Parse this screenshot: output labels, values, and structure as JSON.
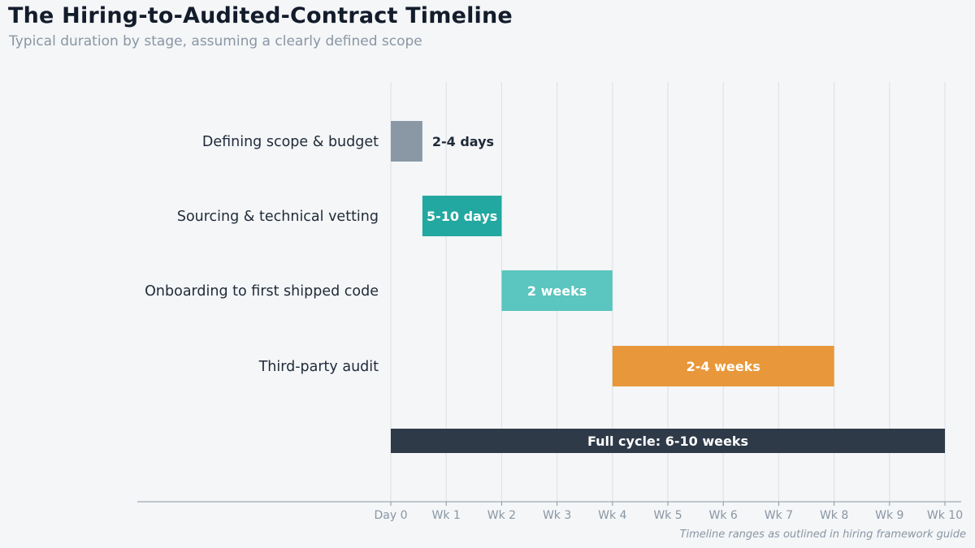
{
  "title": "The Hiring-to-Audited-Contract Timeline",
  "subtitle": "Typical duration by stage, assuming a clearly defined scope",
  "footnote": "Timeline ranges as outlined in hiring framework guide",
  "colors": {
    "background": "#f4f6f8",
    "grid": "#dfe3e7",
    "axis": "#8a96a3",
    "tick_text": "#8a96a3",
    "label_text": "#1f2a38",
    "scope": "#8a98a6",
    "sourcing": "#22a8a0",
    "onboarding": "#5bc5bf",
    "audit": "#e8973a",
    "full_cycle": "#2e3a48"
  },
  "chart_data": {
    "type": "bar",
    "orientation": "horizontal",
    "style": "gantt",
    "x_unit": "weeks",
    "xlim": [
      0,
      10
    ],
    "xticks": [
      0,
      1,
      2,
      3,
      4,
      5,
      6,
      7,
      8,
      9,
      10
    ],
    "xtick_labels": [
      "Day 0",
      "Wk 1",
      "Wk 2",
      "Wk 3",
      "Wk 4",
      "Wk 5",
      "Wk 6",
      "Wk 7",
      "Wk 8",
      "Wk 9",
      "Wk 10"
    ],
    "grid": "vertical",
    "tasks": [
      {
        "label": "Defining scope & budget",
        "start": 0,
        "end": 0.57,
        "value_label": "2-4 days",
        "label_position": "outside",
        "color_key": "scope"
      },
      {
        "label": "Sourcing & technical vetting",
        "start": 0.57,
        "end": 2,
        "value_label": "5-10 days",
        "label_position": "inside",
        "color_key": "sourcing"
      },
      {
        "label": "Onboarding to first shipped code",
        "start": 2,
        "end": 4,
        "value_label": "2 weeks",
        "label_position": "inside",
        "color_key": "onboarding"
      },
      {
        "label": "Third-party audit",
        "start": 4,
        "end": 8,
        "value_label": "2-4 weeks",
        "label_position": "inside",
        "color_key": "audit"
      }
    ],
    "summary": {
      "label": "",
      "start": 0,
      "end": 10,
      "value_label": "Full cycle: 6-10 weeks",
      "color_key": "full_cycle"
    }
  }
}
